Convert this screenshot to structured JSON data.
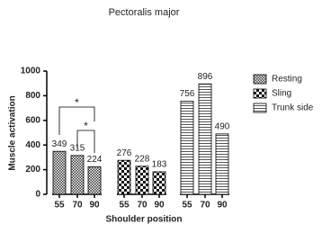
{
  "chart_data": {
    "type": "bar",
    "title": "Pectoralis major",
    "xlabel": "Shoulder position",
    "ylabel": "Muscle activation",
    "categories": [
      "55",
      "70",
      "90",
      "55",
      "70",
      "90",
      "55",
      "70",
      "90"
    ],
    "series": [
      {
        "name": "Resting",
        "color": "#333333",
        "values": [
          349,
          315,
          224,
          null,
          null,
          null,
          null,
          null,
          null
        ]
      },
      {
        "name": "Sling",
        "color": "#111111",
        "values": [
          null,
          null,
          null,
          276,
          228,
          183,
          null,
          null,
          null
        ]
      },
      {
        "name": "Trunk side",
        "color": "#555555",
        "values": [
          null,
          null,
          null,
          null,
          null,
          null,
          756,
          896,
          490
        ]
      }
    ],
    "ylim": [
      0,
      1000
    ],
    "yticks": [
      0,
      200,
      400,
      600,
      800,
      1000
    ],
    "annotations": [
      "*",
      "*"
    ],
    "legend": "right"
  }
}
